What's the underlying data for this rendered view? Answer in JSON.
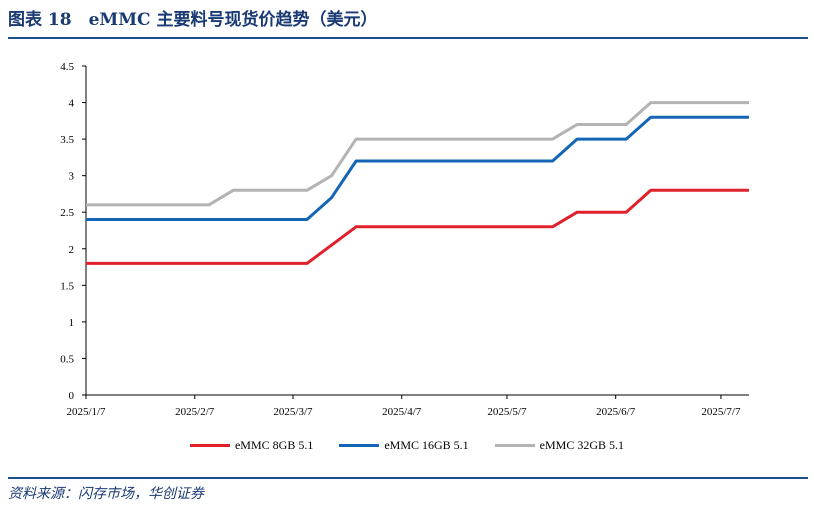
{
  "header": {
    "title": "图表 18　eMMC 主要料号现货价趋势（美元）"
  },
  "footer": {
    "source": "资料来源：闪存市场，华创证券"
  },
  "chart_data": {
    "type": "line",
    "title": "",
    "xlabel": "",
    "ylabel": "",
    "ylim": [
      0,
      4.5
    ],
    "yticks": [
      "0",
      "0.5",
      "1",
      "1.5",
      "2",
      "2.5",
      "3",
      "3.5",
      "4",
      "4.5"
    ],
    "xticks": [
      "2025/1/7",
      "2025/2/7",
      "2025/3/7",
      "2025/4/7",
      "2025/5/7",
      "2025/6/7",
      "2025/7/7"
    ],
    "x": [
      "2025/1/7",
      "2025/1/14",
      "2025/1/21",
      "2025/1/28",
      "2025/2/4",
      "2025/2/11",
      "2025/2/18",
      "2025/2/25",
      "2025/3/4",
      "2025/3/11",
      "2025/3/18",
      "2025/3/25",
      "2025/4/1",
      "2025/4/8",
      "2025/4/15",
      "2025/4/22",
      "2025/4/29",
      "2025/5/6",
      "2025/5/13",
      "2025/5/20",
      "2025/5/27",
      "2025/6/3",
      "2025/6/10",
      "2025/6/17",
      "2025/6/24",
      "2025/7/1",
      "2025/7/8",
      "2025/7/15"
    ],
    "series": [
      {
        "name": "eMMC 8GB 5.1",
        "color": "#e0202a",
        "values": [
          1.8,
          1.8,
          1.8,
          1.8,
          1.8,
          1.8,
          1.8,
          1.8,
          1.8,
          1.8,
          2.05,
          2.3,
          2.3,
          2.3,
          2.3,
          2.3,
          2.3,
          2.3,
          2.3,
          2.3,
          2.5,
          2.5,
          2.5,
          2.8,
          2.8,
          2.8,
          2.8,
          2.8
        ]
      },
      {
        "name": "eMMC 16GB 5.1",
        "color": "#1565b7",
        "values": [
          2.4,
          2.4,
          2.4,
          2.4,
          2.4,
          2.4,
          2.4,
          2.4,
          2.4,
          2.4,
          2.7,
          3.2,
          3.2,
          3.2,
          3.2,
          3.2,
          3.2,
          3.2,
          3.2,
          3.2,
          3.5,
          3.5,
          3.5,
          3.8,
          3.8,
          3.8,
          3.8,
          3.8
        ]
      },
      {
        "name": "eMMC 32GB 5.1",
        "color": "#b3b3b3",
        "values": [
          2.6,
          2.6,
          2.6,
          2.6,
          2.6,
          2.6,
          2.8,
          2.8,
          2.8,
          2.8,
          3.0,
          3.5,
          3.5,
          3.5,
          3.5,
          3.5,
          3.5,
          3.5,
          3.5,
          3.5,
          3.7,
          3.7,
          3.7,
          4.0,
          4.0,
          4.0,
          4.0,
          4.0
        ]
      }
    ],
    "legend_position": "bottom",
    "grid": false
  }
}
